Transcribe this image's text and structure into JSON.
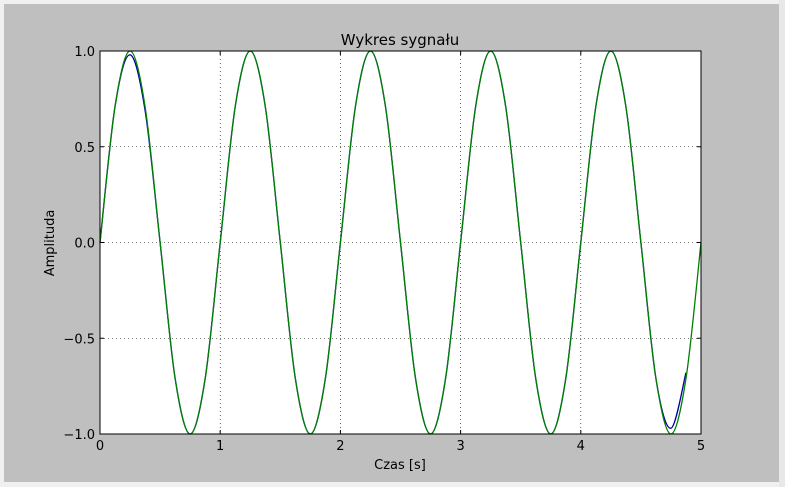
{
  "chart_data": {
    "type": "line",
    "title": "Wykres sygnału",
    "xlabel": "Czas [s]",
    "ylabel": "Amplituda",
    "xlim": [
      0,
      5
    ],
    "ylim": [
      -1.0,
      1.0
    ],
    "xticks": [
      0,
      1,
      2,
      3,
      4,
      5
    ],
    "xtick_labels": [
      "0",
      "1",
      "2",
      "3",
      "4",
      "5"
    ],
    "yticks": [
      -1.0,
      -0.5,
      0.0,
      0.5,
      1.0
    ],
    "ytick_labels": [
      "−1.0",
      "−0.5",
      "0.0",
      "0.5",
      "1.0"
    ],
    "grid": true,
    "series": [
      {
        "color": "#0000a0",
        "x": [
          0,
          0.125,
          0.25,
          0.375,
          0.5,
          0.625,
          0.75,
          0.875,
          1.0,
          1.125,
          1.25,
          1.375,
          1.5,
          1.625,
          1.75,
          1.875,
          2.0,
          2.125,
          2.25,
          2.375,
          2.5,
          2.625,
          2.75,
          2.875,
          3.0,
          3.125,
          3.25,
          3.375,
          3.5,
          3.625,
          3.75,
          3.875,
          4.0,
          4.125,
          4.25,
          4.375,
          4.5,
          4.625,
          4.75,
          4.875
        ],
        "y": [
          0,
          0.71,
          0.98,
          0.69,
          0,
          -0.71,
          -1.0,
          -0.71,
          0,
          0.71,
          1.0,
          0.71,
          0,
          -0.71,
          -1.0,
          -0.71,
          0,
          0.71,
          1.0,
          0.71,
          0,
          -0.71,
          -1.0,
          -0.71,
          0,
          0.71,
          1.0,
          0.71,
          0,
          -0.71,
          -1.0,
          -0.71,
          0,
          0.71,
          1.0,
          0.71,
          0,
          -0.71,
          -0.97,
          -0.68
        ]
      },
      {
        "color": "#008000",
        "x": [
          0,
          0.125,
          0.25,
          0.375,
          0.5,
          0.625,
          0.75,
          0.875,
          1.0,
          1.125,
          1.25,
          1.375,
          1.5,
          1.625,
          1.75,
          1.875,
          2.0,
          2.125,
          2.25,
          2.375,
          2.5,
          2.625,
          2.75,
          2.875,
          3.0,
          3.125,
          3.25,
          3.375,
          3.5,
          3.625,
          3.75,
          3.875,
          4.0,
          4.125,
          4.25,
          4.375,
          4.5,
          4.625,
          4.75,
          4.875,
          5.0
        ],
        "y": [
          0,
          0.71,
          1.0,
          0.71,
          0,
          -0.71,
          -1.0,
          -0.71,
          0,
          0.71,
          1.0,
          0.71,
          0,
          -0.71,
          -1.0,
          -0.71,
          0,
          0.71,
          1.0,
          0.71,
          0,
          -0.71,
          -1.0,
          -0.71,
          0,
          0.71,
          1.0,
          0.71,
          0,
          -0.71,
          -1.0,
          -0.71,
          0,
          0.71,
          1.0,
          0.71,
          0,
          -0.71,
          -1.0,
          -0.71,
          0
        ]
      }
    ]
  }
}
